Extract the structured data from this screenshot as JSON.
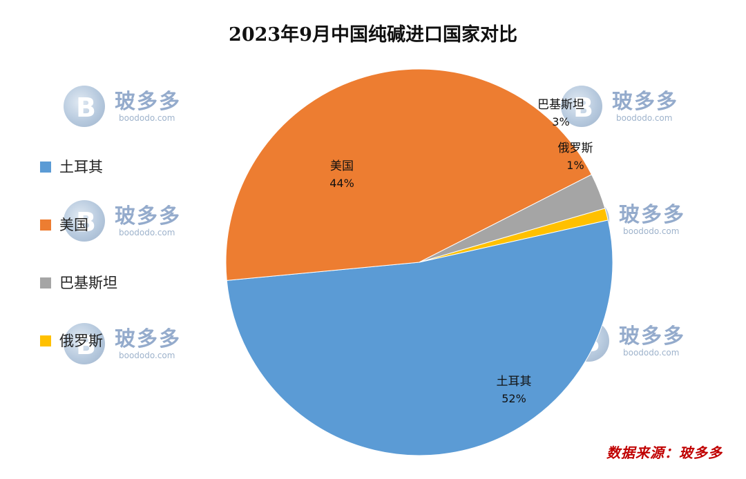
{
  "chart_data": {
    "type": "pie",
    "title": "2023年9月中国纯碱进口国家对比",
    "slices": [
      {
        "label": "土耳其",
        "value": 52,
        "pct_label": "52%",
        "color": "#5b9bd5"
      },
      {
        "label": "美国",
        "value": 44,
        "pct_label": "44%",
        "color": "#ed7d31"
      },
      {
        "label": "巴基斯坦",
        "value": 3,
        "pct_label": "3%",
        "color": "#a5a5a5"
      },
      {
        "label": "俄罗斯",
        "value": 1,
        "pct_label": "1%",
        "color": "#ffc000"
      }
    ],
    "legend_position": "left"
  },
  "source": "数据来源：玻多多",
  "watermark": {
    "logo_letter": "B",
    "brand": "玻多多",
    "url": "boododo.com"
  }
}
